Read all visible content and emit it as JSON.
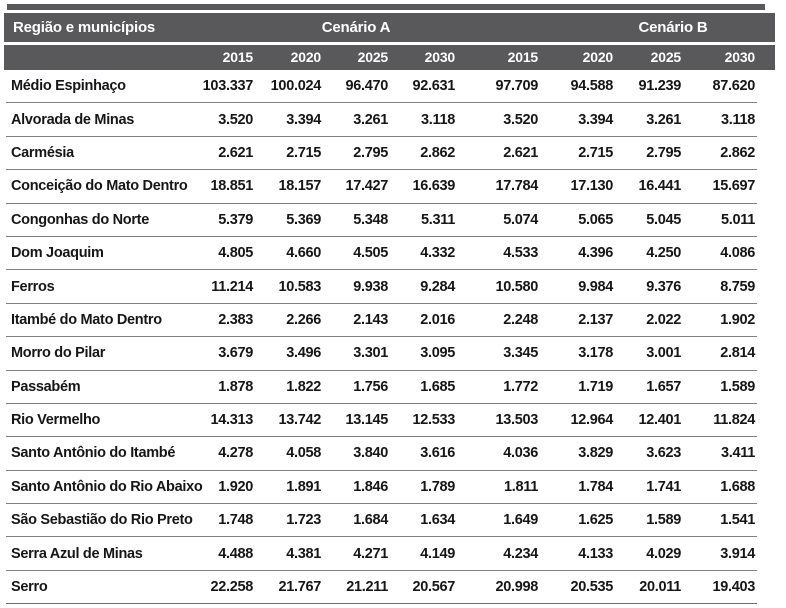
{
  "table": {
    "col_header": "Região e municípios",
    "group_a": "Cenário A",
    "group_b": "Cenário B",
    "years": [
      "2015",
      "2020",
      "2025",
      "2030",
      "2015",
      "2020",
      "2025",
      "2030"
    ],
    "rows": [
      {
        "label": "Médio Espinhaço",
        "values": [
          "103.337",
          "100.024",
          "96.470",
          "92.631",
          "97.709",
          "94.588",
          "91.239",
          "87.620"
        ]
      },
      {
        "label": "Alvorada de Minas",
        "values": [
          "3.520",
          "3.394",
          "3.261",
          "3.118",
          "3.520",
          "3.394",
          "3.261",
          "3.118"
        ]
      },
      {
        "label": "Carmésia",
        "values": [
          "2.621",
          "2.715",
          "2.795",
          "2.862",
          "2.621",
          "2.715",
          "2.795",
          "2.862"
        ]
      },
      {
        "label": "Conceição do Mato Dentro",
        "values": [
          "18.851",
          "18.157",
          "17.427",
          "16.639",
          "17.784",
          "17.130",
          "16.441",
          "15.697"
        ]
      },
      {
        "label": "Congonhas do Norte",
        "values": [
          "5.379",
          "5.369",
          "5.348",
          "5.311",
          "5.074",
          "5.065",
          "5.045",
          "5.011"
        ]
      },
      {
        "label": "Dom Joaquim",
        "values": [
          "4.805",
          "4.660",
          "4.505",
          "4.332",
          "4.533",
          "4.396",
          "4.250",
          "4.086"
        ]
      },
      {
        "label": "Ferros",
        "values": [
          "11.214",
          "10.583",
          "9.938",
          "9.284",
          "10.580",
          "9.984",
          "9.376",
          "8.759"
        ]
      },
      {
        "label": "Itambé do Mato Dentro",
        "values": [
          "2.383",
          "2.266",
          "2.143",
          "2.016",
          "2.248",
          "2.137",
          "2.022",
          "1.902"
        ]
      },
      {
        "label": "Morro do Pilar",
        "values": [
          "3.679",
          "3.496",
          "3.301",
          "3.095",
          "3.345",
          "3.178",
          "3.001",
          "2.814"
        ]
      },
      {
        "label": "Passabém",
        "values": [
          "1.878",
          "1.822",
          "1.756",
          "1.685",
          "1.772",
          "1.719",
          "1.657",
          "1.589"
        ]
      },
      {
        "label": "Rio Vermelho",
        "values": [
          "14.313",
          "13.742",
          "13.145",
          "12.533",
          "13.503",
          "12.964",
          "12.401",
          "11.824"
        ]
      },
      {
        "label": "Santo Antônio do Itambé",
        "values": [
          "4.278",
          "4.058",
          "3.840",
          "3.616",
          "4.036",
          "3.829",
          "3.623",
          "3.411"
        ]
      },
      {
        "label": "Santo Antônio do Rio Abaixo",
        "values": [
          "1.920",
          "1.891",
          "1.846",
          "1.789",
          "1.811",
          "1.784",
          "1.741",
          "1.688"
        ]
      },
      {
        "label": "São Sebastião do Rio Preto",
        "values": [
          "1.748",
          "1.723",
          "1.684",
          "1.634",
          "1.649",
          "1.625",
          "1.589",
          "1.541"
        ]
      },
      {
        "label": "Serra Azul de Minas",
        "values": [
          "4.488",
          "4.381",
          "4.271",
          "4.149",
          "4.234",
          "4.133",
          "4.029",
          "3.914"
        ]
      },
      {
        "label": "Serro",
        "values": [
          "22.258",
          "21.767",
          "21.211",
          "20.567",
          "20.998",
          "20.535",
          "20.011",
          "19.403"
        ]
      }
    ]
  },
  "colors": {
    "header_bg": "#59595b",
    "header_text": "#ffffff",
    "body_text": "#161616",
    "row_rule": "#808080"
  }
}
